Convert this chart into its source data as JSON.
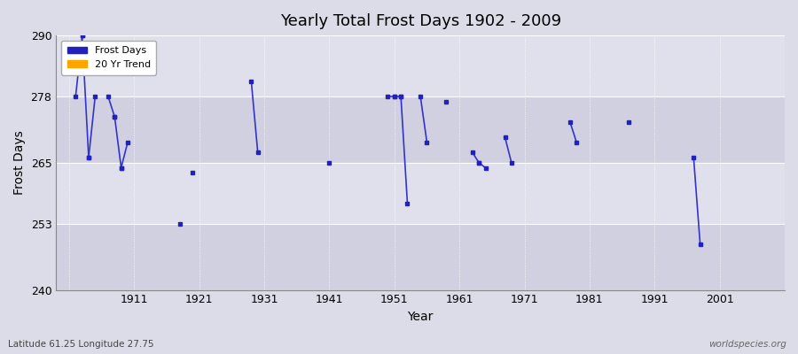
{
  "title": "Yearly Total Frost Days 1902 - 2009",
  "xlabel": "Year",
  "ylabel": "Frost Days",
  "ylim": [
    240,
    290
  ],
  "xlim": [
    1899,
    2011
  ],
  "yticks": [
    240,
    253,
    265,
    278,
    290
  ],
  "xticks": [
    1901,
    1911,
    1921,
    1931,
    1941,
    1951,
    1961,
    1971,
    1981,
    1991,
    2001
  ],
  "xticklabels": [
    "",
    "1911",
    "1921",
    "1931",
    "1941",
    "1951",
    "1961",
    "1971",
    "1981",
    "1991",
    "2001"
  ],
  "background_color": "#dcdce8",
  "plot_bg_color": "#dcdce8",
  "grid_color": "#ffffff",
  "line_color": "#3333cc",
  "frost_days_color": "#2222bb",
  "trend_color": "#ffa500",
  "watermark": "worldspecies.org",
  "lat_lon_label": "Latitude 61.25 Longitude 27.75",
  "band_colors": [
    "#d0d0e0",
    "#e0e0ec"
  ],
  "data_segments": [
    {
      "years": [
        1902,
        1903
      ],
      "values": [
        278,
        290
      ]
    },
    {
      "years": [
        1903,
        1904
      ],
      "values": [
        290,
        266
      ]
    },
    {
      "years": [
        1904,
        1905
      ],
      "values": [
        266,
        278
      ]
    },
    {
      "years": [
        1907,
        1908
      ],
      "values": [
        278,
        274
      ]
    },
    {
      "years": [
        1908,
        1909
      ],
      "values": [
        274,
        264
      ]
    },
    {
      "years": [
        1909,
        1910
      ],
      "values": [
        264,
        269
      ]
    },
    {
      "years": [
        1918
      ],
      "values": [
        253
      ]
    },
    {
      "years": [
        1920
      ],
      "values": [
        263
      ]
    },
    {
      "years": [
        1929,
        1930
      ],
      "values": [
        281,
        267
      ]
    },
    {
      "years": [
        1941
      ],
      "values": [
        265
      ]
    },
    {
      "years": [
        1950,
        1951
      ],
      "values": [
        278,
        278
      ]
    },
    {
      "years": [
        1951,
        1952
      ],
      "values": [
        278,
        278
      ]
    },
    {
      "years": [
        1952,
        1953
      ],
      "values": [
        278,
        257
      ]
    },
    {
      "years": [
        1955,
        1956
      ],
      "values": [
        278,
        269
      ]
    },
    {
      "years": [
        1959
      ],
      "values": [
        277
      ]
    },
    {
      "years": [
        1963,
        1964
      ],
      "values": [
        267,
        265
      ]
    },
    {
      "years": [
        1964,
        1965
      ],
      "values": [
        265,
        264
      ]
    },
    {
      "years": [
        1968,
        1969
      ],
      "values": [
        270,
        265
      ]
    },
    {
      "years": [
        1978,
        1979
      ],
      "values": [
        273,
        269
      ]
    },
    {
      "years": [
        1987
      ],
      "values": [
        273
      ]
    },
    {
      "years": [
        1997,
        1998
      ],
      "values": [
        266,
        249
      ]
    }
  ]
}
